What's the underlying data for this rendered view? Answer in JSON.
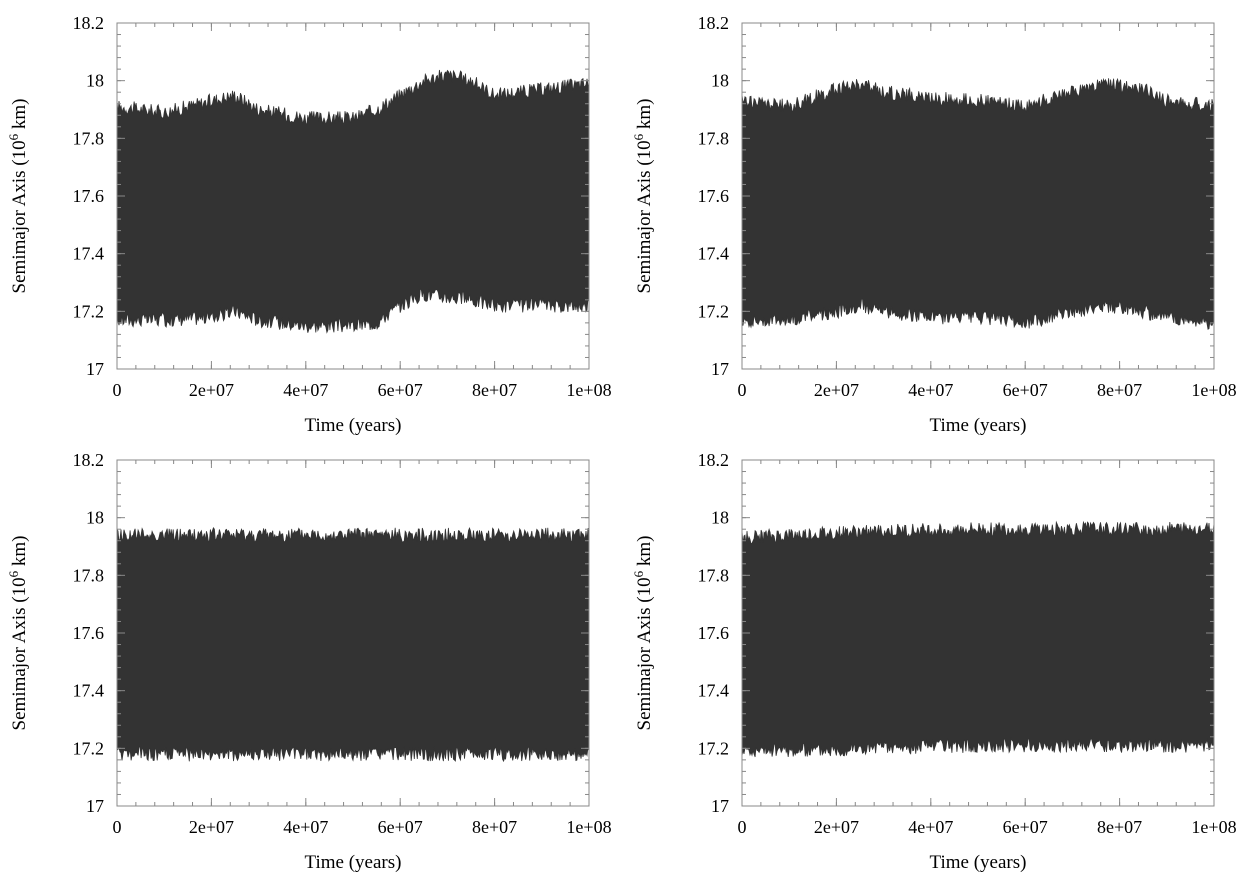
{
  "figure": {
    "colors": {
      "band": "#333333",
      "frame": "#888888",
      "text": "#000000"
    }
  },
  "chart_data": [
    {
      "type": "area",
      "panel": "top-left",
      "xlabel": "Time (years)",
      "ylabel": "Semimajor Axis (10^6 km)",
      "ylabel_main": "Semimajor Axis (10",
      "ylabel_sup": "6",
      "ylabel_end": " km)",
      "xlim": [
        0,
        100000000
      ],
      "ylim": [
        17.0,
        18.2
      ],
      "xticks": [
        "0",
        "2e+07",
        "4e+07",
        "6e+07",
        "8e+07",
        "1e+08"
      ],
      "yticks": [
        "17",
        "17.2",
        "17.4",
        "17.6",
        "17.8",
        "18",
        "18.2"
      ],
      "grid": false,
      "series": [
        {
          "x": [
            0,
            10000000,
            20000000,
            25000000,
            30000000,
            40000000,
            50000000,
            55000000,
            60000000,
            65000000,
            70000000,
            75000000,
            80000000,
            90000000,
            100000000
          ],
          "lower": [
            17.17,
            17.17,
            17.18,
            17.2,
            17.17,
            17.15,
            17.15,
            17.16,
            17.22,
            17.26,
            17.25,
            17.24,
            17.22,
            17.22,
            17.22
          ],
          "upper": [
            17.91,
            17.89,
            17.93,
            17.95,
            17.9,
            17.87,
            17.87,
            17.9,
            17.95,
            18.0,
            18.02,
            18.0,
            17.95,
            17.97,
            17.99
          ]
        }
      ]
    },
    {
      "type": "area",
      "panel": "top-right",
      "xlabel": "Time (years)",
      "ylabel": "Semimajor Axis (10^6 km)",
      "ylabel_main": "Semimajor Axis (10",
      "ylabel_sup": "6",
      "ylabel_end": " km)",
      "xlim": [
        0,
        100000000
      ],
      "ylim": [
        17.0,
        18.2
      ],
      "xticks": [
        "0",
        "2e+07",
        "4e+07",
        "6e+07",
        "8e+07",
        "1e+08"
      ],
      "yticks": [
        "17",
        "17.2",
        "17.4",
        "17.6",
        "17.8",
        "18",
        "18.2"
      ],
      "grid": false,
      "series": [
        {
          "x": [
            0,
            10000000,
            20000000,
            25000000,
            30000000,
            40000000,
            50000000,
            60000000,
            70000000,
            77000000,
            85000000,
            90000000,
            100000000
          ],
          "lower": [
            17.17,
            17.17,
            17.2,
            17.22,
            17.2,
            17.18,
            17.18,
            17.16,
            17.2,
            17.22,
            17.2,
            17.18,
            17.16
          ],
          "upper": [
            17.93,
            17.91,
            17.97,
            17.99,
            17.96,
            17.94,
            17.93,
            17.91,
            17.96,
            17.99,
            17.97,
            17.93,
            17.91
          ]
        }
      ]
    },
    {
      "type": "area",
      "panel": "bottom-left",
      "xlabel": "Time (years)",
      "ylabel": "Semimajor Axis (10^6 km)",
      "ylabel_main": "Semimajor Axis (10",
      "ylabel_sup": "6",
      "ylabel_end": " km)",
      "xlim": [
        0,
        100000000
      ],
      "ylim": [
        17.0,
        18.2
      ],
      "xticks": [
        "0",
        "2e+07",
        "4e+07",
        "6e+07",
        "8e+07",
        "1e+08"
      ],
      "yticks": [
        "17",
        "17.2",
        "17.4",
        "17.6",
        "17.8",
        "18",
        "18.2"
      ],
      "grid": false,
      "series": [
        {
          "x": [
            0,
            25000000,
            50000000,
            75000000,
            100000000
          ],
          "lower": [
            17.18,
            17.18,
            17.18,
            17.18,
            17.18
          ],
          "upper": [
            17.94,
            17.94,
            17.94,
            17.94,
            17.94
          ]
        }
      ]
    },
    {
      "type": "area",
      "panel": "bottom-right",
      "xlabel": "Time (years)",
      "ylabel": "Semimajor Axis (10^6 km)",
      "ylabel_main": "Semimajor Axis (10",
      "ylabel_sup": "6",
      "ylabel_end": " km)",
      "xlim": [
        0,
        100000000
      ],
      "ylim": [
        17.0,
        18.2
      ],
      "xticks": [
        "0",
        "2e+07",
        "4e+07",
        "6e+07",
        "8e+07",
        "1e+08"
      ],
      "yticks": [
        "17",
        "17.2",
        "17.4",
        "17.6",
        "17.8",
        "18",
        "18.2"
      ],
      "grid": false,
      "series": [
        {
          "x": [
            0,
            25000000,
            50000000,
            75000000,
            100000000
          ],
          "lower": [
            17.19,
            17.2,
            17.21,
            17.21,
            17.21
          ],
          "upper": [
            17.93,
            17.95,
            17.96,
            17.96,
            17.96
          ]
        }
      ]
    }
  ]
}
